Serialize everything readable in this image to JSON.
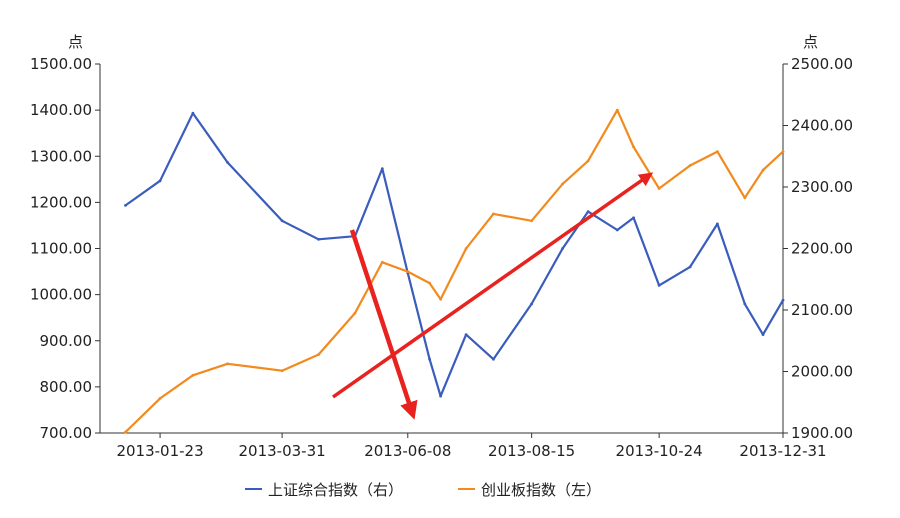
{
  "chart_data": {
    "type": "line",
    "x": [
      "2013-01-04",
      "2013-01-23",
      "2013-02-10",
      "2013-03-01",
      "2013-03-31",
      "2013-04-20",
      "2013-05-10",
      "2013-05-25",
      "2013-06-08",
      "2013-06-20",
      "2013-06-26",
      "2013-07-10",
      "2013-07-25",
      "2013-08-15",
      "2013-09-01",
      "2013-09-15",
      "2013-10-01",
      "2013-10-10",
      "2013-10-24",
      "2013-11-10",
      "2013-11-25",
      "2013-12-10",
      "2013-12-20",
      "2013-12-31"
    ],
    "xticks": [
      "2013-01-23",
      "2013-03-31",
      "2013-06-08",
      "2013-08-15",
      "2013-10-24",
      "2013-12-31"
    ],
    "left_axis": {
      "unit": "点",
      "ylim": [
        700,
        1500
      ],
      "ticks": [
        "700.00",
        "800.00",
        "900.00",
        "1000.00",
        "1100.00",
        "1200.00",
        "1300.00",
        "1400.00",
        "1500.00"
      ]
    },
    "right_axis": {
      "unit": "点",
      "ylim": [
        1900,
        2500
      ],
      "ticks": [
        "1900.00",
        "2000.00",
        "2100.00",
        "2200.00",
        "2300.00",
        "2400.00",
        "2500.00"
      ]
    },
    "series": [
      {
        "name": "上证综合指数（右）",
        "axis": "right",
        "color": "#3a5dbd",
        "values": [
          2270,
          2310,
          2420,
          2340,
          2245,
          2215,
          2220,
          2330,
          2160,
          2020,
          1960,
          2060,
          2020,
          2110,
          2200,
          2260,
          2230,
          2250,
          2140,
          2170,
          2240,
          2110,
          2060,
          2116
        ]
      },
      {
        "name": "创业板指数（左）",
        "axis": "left",
        "color": "#f28a1e",
        "values": [
          702,
          775,
          825,
          850,
          835,
          870,
          960,
          1070,
          1050,
          1025,
          990,
          1100,
          1175,
          1160,
          1240,
          1290,
          1400,
          1320,
          1230,
          1280,
          1310,
          1210,
          1270,
          1310
        ]
      }
    ],
    "grid": false,
    "legend_position": "bottom"
  },
  "legend": [
    {
      "label": "上证综合指数（右）",
      "color": "#3a5dbd"
    },
    {
      "label": "创业板指数（左）",
      "color": "#f28a1e"
    }
  ]
}
